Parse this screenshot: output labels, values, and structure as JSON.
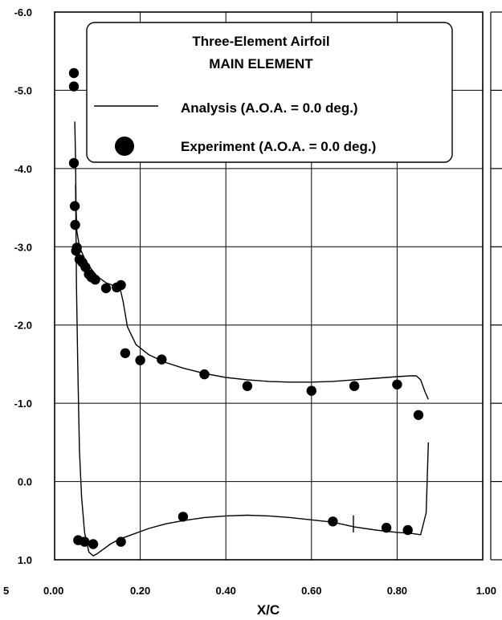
{
  "chart_data": {
    "type": "line",
    "title": "Three-Element Airfoil",
    "subtitle": "MAIN ELEMENT",
    "xlabel": "X/C",
    "ylabel": "",
    "xlim": [
      0.0,
      1.0
    ],
    "ylim": [
      -6.0,
      1.0
    ],
    "y_inverted": true,
    "grid": true,
    "legend_position": "top-right",
    "x_ticks": [
      "0.00",
      "0.20",
      "0.40",
      "0.60",
      "0.80",
      "1.00"
    ],
    "x_tick_left_partial": "5",
    "y_ticks": [
      "-6.0",
      "-5.0",
      "-4.0",
      "-3.0",
      "-2.0",
      "-1.0",
      "0.0",
      "1.0"
    ],
    "series": [
      {
        "name": "Analysis (A.O.A. = 0.0 deg.)",
        "kind": "line",
        "color": "#000000",
        "upper": {
          "x": [
            0.047,
            0.049,
            0.05,
            0.052,
            0.058,
            0.07,
            0.085,
            0.1,
            0.12,
            0.14,
            0.152,
            0.16,
            0.17,
            0.19,
            0.22,
            0.26,
            0.3,
            0.35,
            0.4,
            0.45,
            0.5,
            0.55,
            0.6,
            0.65,
            0.7,
            0.75,
            0.8,
            0.83,
            0.845,
            0.855,
            0.865,
            0.873
          ],
          "y": [
            -4.6,
            -4.1,
            -3.5,
            -3.2,
            -3.0,
            -2.85,
            -2.72,
            -2.62,
            -2.54,
            -2.5,
            -2.49,
            -2.3,
            -1.98,
            -1.75,
            -1.62,
            -1.52,
            -1.45,
            -1.38,
            -1.33,
            -1.3,
            -1.28,
            -1.27,
            -1.27,
            -1.28,
            -1.3,
            -1.32,
            -1.34,
            -1.35,
            -1.35,
            -1.3,
            -1.15,
            -1.05
          ]
        },
        "lower": {
          "x": [
            0.049,
            0.051,
            0.054,
            0.058,
            0.063,
            0.07,
            0.08,
            0.09,
            0.1,
            0.115,
            0.13,
            0.15,
            0.18,
            0.22,
            0.26,
            0.3,
            0.35,
            0.4,
            0.45,
            0.5,
            0.55,
            0.6,
            0.65,
            0.7,
            0.75,
            0.8,
            0.83,
            0.855,
            0.868,
            0.873
          ],
          "y": [
            -3.8,
            -2.5,
            -1.5,
            -0.4,
            0.2,
            0.65,
            0.9,
            0.95,
            0.92,
            0.86,
            0.8,
            0.74,
            0.68,
            0.6,
            0.54,
            0.5,
            0.46,
            0.44,
            0.43,
            0.44,
            0.46,
            0.49,
            0.52,
            0.58,
            0.62,
            0.65,
            0.66,
            0.68,
            0.4,
            -0.5
          ]
        },
        "spike": {
          "x": [
            0.698,
            0.698
          ],
          "y": [
            0.43,
            0.65
          ]
        }
      },
      {
        "name": "Experiment (A.O.A. = 0.0 deg.)",
        "kind": "scatter",
        "color": "#000000",
        "x": [
          0.045,
          0.045,
          0.045,
          0.047,
          0.048,
          0.05,
          0.052,
          0.058,
          0.065,
          0.072,
          0.08,
          0.086,
          0.095,
          0.12,
          0.145,
          0.155,
          0.165,
          0.2,
          0.25,
          0.35,
          0.45,
          0.6,
          0.7,
          0.8,
          0.85,
          0.055,
          0.07,
          0.09,
          0.155,
          0.3,
          0.65,
          0.775,
          0.825
        ],
        "y": [
          -5.22,
          -5.05,
          -4.07,
          -3.52,
          -3.28,
          -2.95,
          -2.99,
          -2.84,
          -2.8,
          -2.74,
          -2.65,
          -2.61,
          -2.58,
          -2.47,
          -2.48,
          -2.51,
          -1.64,
          -1.55,
          -1.56,
          -1.37,
          -1.22,
          -1.16,
          -1.22,
          -1.24,
          -0.85,
          0.75,
          0.77,
          0.8,
          0.77,
          0.45,
          0.51,
          0.59,
          0.62
        ]
      }
    ]
  }
}
